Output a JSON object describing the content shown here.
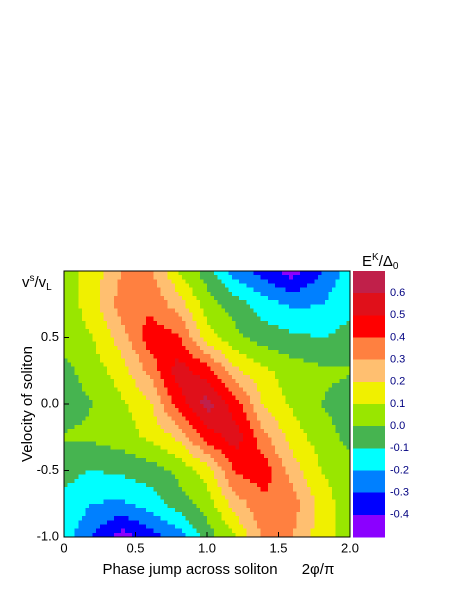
{
  "chart_data": {
    "type": "contour",
    "x_label": "Phase jump across soliton",
    "x_unit": "2φ/π",
    "y_label": "Velocity of soliton",
    "y_unit_parts": [
      "v",
      "s",
      "/v",
      "L"
    ],
    "colorbar_title_parts": [
      "E",
      "K",
      "/Δ",
      "0"
    ],
    "x": [
      0,
      0.2,
      0.4,
      0.6,
      0.8,
      1,
      1.2,
      1.4,
      1.6,
      1.8,
      2
    ],
    "y": [
      1,
      0.75,
      0.5,
      0.25,
      0,
      -0.25,
      -0.5,
      -0.75,
      -1
    ],
    "z": [
      [
        0.05,
        0.15,
        0.3,
        0.33,
        0.1,
        -0.05,
        -0.25,
        -0.35,
        -0.45,
        -0.3,
        -0.15
      ],
      [
        0.05,
        0.15,
        0.35,
        0.38,
        0.25,
        0.05,
        -0.05,
        -0.15,
        -0.22,
        -0.2,
        -0.12
      ],
      [
        0.03,
        0.1,
        0.25,
        0.45,
        0.42,
        0.15,
        0.03,
        -0.05,
        -0.08,
        -0.1,
        -0.07
      ],
      [
        -0.03,
        0.05,
        0.15,
        0.33,
        0.55,
        0.45,
        0.22,
        0.12,
        0.05,
        0.02,
        0.01
      ],
      [
        -0.05,
        0,
        0.08,
        0.18,
        0.45,
        0.65,
        0.45,
        0.18,
        0.08,
        0,
        -0.05
      ],
      [
        0.01,
        0.02,
        0.05,
        0.12,
        0.22,
        0.45,
        0.55,
        0.33,
        0.15,
        0.05,
        -0.03
      ],
      [
        -0.07,
        -0.1,
        -0.08,
        -0.05,
        0.03,
        0.15,
        0.42,
        0.45,
        0.25,
        0.1,
        0.03
      ],
      [
        -0.12,
        -0.2,
        -0.22,
        -0.15,
        -0.05,
        0.05,
        0.25,
        0.38,
        0.35,
        0.15,
        0.05
      ],
      [
        -0.15,
        -0.3,
        -0.45,
        -0.35,
        -0.25,
        -0.05,
        0.1,
        0.33,
        0.3,
        0.15,
        0.05
      ]
    ],
    "levels": [
      -0.4,
      -0.3,
      -0.2,
      -0.1,
      {
        "value": 0,
        "label": "0.0"
      },
      0.1,
      0.2,
      0.3,
      0.4,
      0.5,
      0.6
    ],
    "colors": [
      "#8B00FF",
      "#0000FF",
      "#0080FF",
      "#00FFFF",
      "#46B450",
      "#99E600",
      "#F0F000",
      "#FFBF70",
      "#FF8040",
      "#FF0000",
      "#E0101A",
      "#C0204A"
    ],
    "xlim": [
      0,
      2
    ],
    "ylim": [
      -1,
      1
    ],
    "xticks": [
      0,
      0.5,
      {
        "value": 1,
        "label": "1.0"
      },
      1.5,
      {
        "value": 2,
        "label": "2.0"
      }
    ],
    "yticks": [
      {
        "value": -1,
        "label": "-1.0"
      },
      -0.5,
      {
        "value": 0,
        "label": "0.0"
      },
      0.5
    ]
  }
}
